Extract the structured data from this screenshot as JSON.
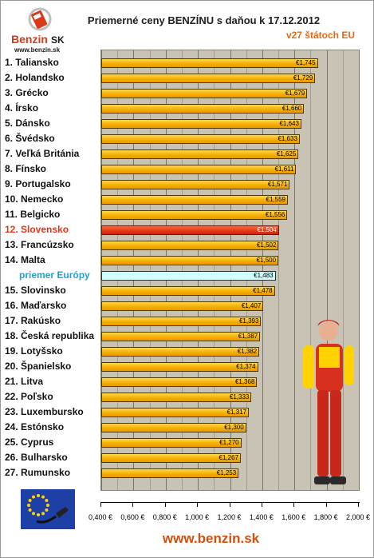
{
  "logo": {
    "brand": "Benzin",
    "brand_suffix": "SK",
    "url": "www.benzin.sk"
  },
  "chart_data": {
    "type": "bar",
    "orientation": "horizontal",
    "title": "Priemerné ceny BENZÍNU s daňou k 17.12.2012",
    "subtitle": "v27 štátoch EU",
    "xlim": [
      0.4,
      2.0
    ],
    "x_ticks": [
      "0,400 €",
      "0,600 €",
      "0,800 €",
      "1,000 €",
      "1,200 €",
      "1,400 €",
      "1,600 €",
      "1,800 €",
      "2,000 €"
    ],
    "grid": true,
    "categories": [
      "1. Taliansko",
      "2. Holandsko",
      "3. Grécko",
      "4. Írsko",
      "5. Dánsko",
      "6. Švédsko",
      "7. Veľká Británia",
      "8. Fínsko",
      "9. Portugalsko",
      "10. Nemecko",
      "11. Belgicko",
      "12. Slovensko",
      "13. Francúzsko",
      "14. Malta",
      "priemer Európy",
      "15. Slovinsko",
      "16. Maďarsko",
      "17. Rakúsko",
      "18. Česká republika",
      "19. Lotyšsko",
      "20. Španielsko",
      "21. Litva",
      "22. Poľsko",
      "23. Luxembursko",
      "24. Estónsko",
      "25. Cyprus",
      "26. Bulharsko",
      "27. Rumunsko"
    ],
    "values": [
      1.745,
      1.729,
      1.679,
      1.66,
      1.643,
      1.633,
      1.625,
      1.611,
      1.571,
      1.559,
      1.556,
      1.504,
      1.502,
      1.5,
      1.483,
      1.478,
      1.407,
      1.393,
      1.387,
      1.382,
      1.374,
      1.368,
      1.333,
      1.317,
      1.3,
      1.27,
      1.267,
      1.253
    ],
    "value_labels": [
      "€1,745",
      "€1,729",
      "€1,679",
      "€1,660",
      "€1,643",
      "€1,633",
      "€1,625",
      "€1,611",
      "€1,571",
      "€1,559",
      "€1,556",
      "€1,504",
      "€1,502",
      "€1,500",
      "€1,483",
      "€1,478",
      "€1,407",
      "€1,393",
      "€1,387",
      "€1,382",
      "€1,374",
      "€1,368",
      "€1,333",
      "€1,317",
      "€1,300",
      "€1,270",
      "€1,267",
      "€1,253"
    ],
    "highlight_index": 11,
    "average_index": 14
  },
  "footer": {
    "url": "www.benzin.sk"
  },
  "colors": {
    "bar": "#f4ac00",
    "highlight": "#e2361a",
    "average": "#cfffff",
    "plot_bg": "#c9c3b6",
    "accent": "#e26a18"
  },
  "icons": {
    "logo": "benzin-pump-logo",
    "eu": "eu-flag-nozzle-icon",
    "mascot": "mechanic-figure"
  }
}
